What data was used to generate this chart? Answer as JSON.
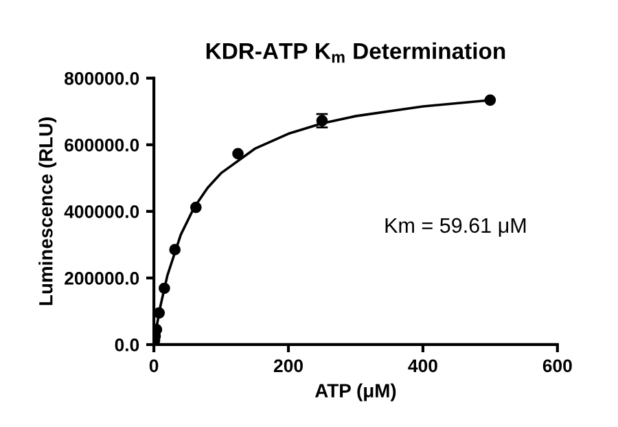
{
  "chart_data": {
    "type": "scatter",
    "title": "KDR-ATP K$_{m}$ Determination",
    "xlabel": "ATP (μM)",
    "ylabel": "Luminescence (RLU)",
    "annotations": [
      "Km = 59.61 μM"
    ],
    "series": [
      {
        "color": "#000000",
        "marker": "circle",
        "x": [
          0.98,
          1.95,
          3.9,
          7.8,
          15.6,
          31.25,
          62.5,
          125,
          250,
          500
        ],
        "values": [
          12000,
          25000,
          45000,
          95000,
          169000,
          285000,
          412000,
          573000,
          672000,
          734000
        ],
        "errors": [
          null,
          null,
          null,
          null,
          null,
          null,
          null,
          null,
          20000,
          null
        ]
      },
      {
        "type": "line",
        "color": "#000000",
        "x": [
          0,
          5,
          10,
          20,
          40,
          60,
          80,
          100,
          150,
          200,
          250,
          300,
          400,
          500
        ],
        "values": [
          0,
          64000,
          118000,
          207000,
          330000,
          412000,
          471000,
          515000,
          588000,
          633000,
          664000,
          686000,
          715000,
          734000
        ]
      }
    ],
    "xlim": [
      0,
      600
    ],
    "xticks": [
      0,
      200,
      400,
      600
    ],
    "ylim": [
      0,
      800000
    ],
    "yticks": [
      {
        "value": 0,
        "label": "0.0"
      },
      {
        "value": 200000,
        "label": "200000.0"
      },
      {
        "value": 400000,
        "label": "400000.0"
      },
      {
        "value": 600000,
        "label": "600000.0"
      },
      {
        "value": 800000,
        "label": "800000.0"
      }
    ],
    "grid": false,
    "legend": false
  }
}
